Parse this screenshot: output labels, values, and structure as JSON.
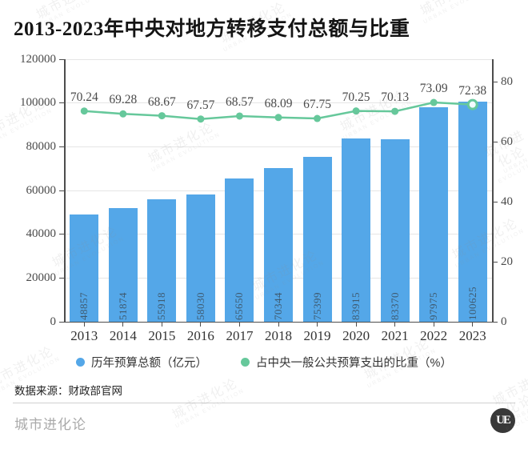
{
  "title": "2013-2023年中央对地方转移支付总额与比重",
  "chart_data": {
    "type": "bar",
    "categories": [
      "2013",
      "2014",
      "2015",
      "2016",
      "2017",
      "2018",
      "2019",
      "2020",
      "2021",
      "2022",
      "2023"
    ],
    "series": [
      {
        "name": "历年预算总额（亿元）",
        "type": "bar",
        "axis": "left",
        "color": "#54a7e8",
        "values": [
          48857,
          51874,
          55918,
          58030,
          65650,
          70344,
          75399,
          83915,
          83370,
          97975,
          100625
        ]
      },
      {
        "name": "占中央一般公共预算支出的比重（%）",
        "type": "line",
        "axis": "right",
        "color": "#66c89b",
        "values": [
          70.24,
          69.28,
          68.67,
          67.57,
          68.57,
          68.09,
          67.75,
          70.25,
          70.13,
          73.09,
          72.38
        ]
      }
    ],
    "left_axis": {
      "min": 0,
      "max": 120000,
      "ticks": [
        0,
        20000,
        40000,
        60000,
        80000,
        100000,
        120000
      ]
    },
    "right_axis": {
      "min": 0,
      "max": 87.5,
      "ticks": [
        0,
        20,
        40,
        60,
        80
      ]
    },
    "grid": true,
    "legend_position": "bottom"
  },
  "legend": {
    "items": [
      {
        "label": "历年预算总额（亿元）",
        "color": "#54a7e8"
      },
      {
        "label": "占中央一般公共预算支出的比重（%）",
        "color": "#66c89b"
      }
    ]
  },
  "source": "数据来源：财政部官网",
  "footer": {
    "brand": "城市进化论",
    "logo": "UE"
  },
  "watermark": {
    "text": "城市进化论",
    "subtext": "URBAN EVOLUTION"
  }
}
